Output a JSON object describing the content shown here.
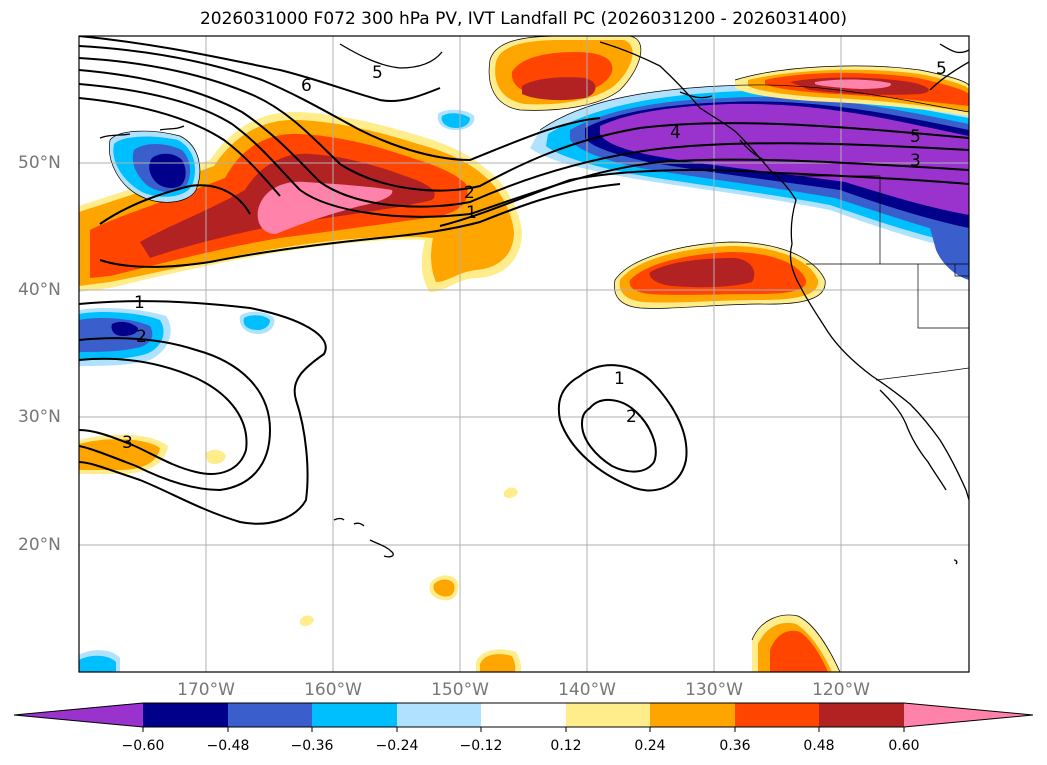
{
  "title": "2026031000 F072 300 hPa PV, IVT Landfall PC (2026031200 - 2026031400)",
  "lat_labels": [
    "50°N",
    "40°N",
    "30°N",
    "20°N"
  ],
  "lon_labels": [
    "170°W",
    "160°W",
    "150°W",
    "140°W",
    "130°W",
    "120°W"
  ],
  "contour_labels": [
    "6",
    "5",
    "4",
    "5",
    "3",
    "2",
    "1",
    "1",
    "2",
    "3",
    "1",
    "2",
    "5"
  ],
  "colorbar": {
    "ticks": [
      "−0.60",
      "−0.48",
      "−0.36",
      "−0.24",
      "−0.12",
      "0.12",
      "0.24",
      "0.36",
      "0.48",
      "0.60"
    ],
    "colors": [
      "#9a32cd",
      "#00008b",
      "#3a5fcd",
      "#00bfff",
      "#b0e2ff",
      "#ffffff",
      "#ffec8b",
      "#ffa500",
      "#ff4500",
      "#b22222",
      "#ff82ab"
    ]
  },
  "colors": {
    "neg_strong": "#9a32cd",
    "neg_navy": "#00008b",
    "neg_blue": "#3a5fcd",
    "neg_cyan": "#00bfff",
    "neg_light": "#b0e2ff",
    "pos_yellow": "#ffec8b",
    "pos_orange": "#ffa500",
    "pos_red_orange": "#ff4500",
    "pos_dark_red": "#b22222",
    "pos_pink": "#ff82ab"
  }
}
